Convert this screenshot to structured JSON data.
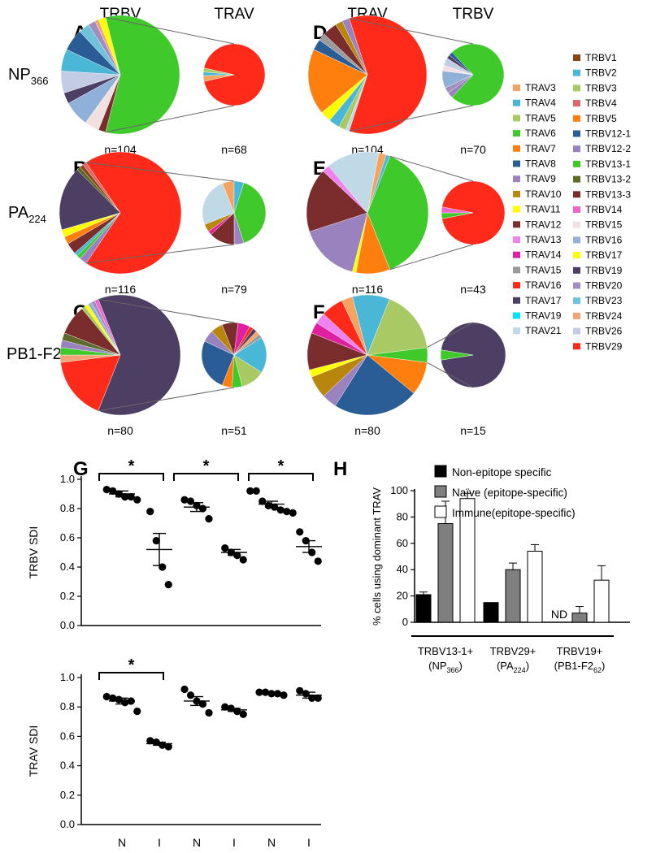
{
  "colors": {
    "TRBV1": "#8B4513",
    "TRBV2": "#4BB7D6",
    "TRBV3": "#A8C964",
    "TRBV4": "#E06666",
    "TRBV5": "#FF7F0E",
    "TRBV12-1": "#2A5D95",
    "TRBV12-2": "#9A82BE",
    "TRBV13-1": "#3FC92A",
    "TRBV13-2": "#5C6B2A",
    "TRBV13-3": "#7B2C2C",
    "TRBV14": "#EE66CC",
    "TRBV15": "#F2E0E0",
    "TRBV16": "#8FB0D8",
    "TRBV17": "#FFFF00",
    "TRBV19": "#4D3F64",
    "TRBV20": "#A08EC0",
    "TRBV23": "#6FC3D9",
    "TRBV24": "#F4A277",
    "TRBV26": "#C3CCE2",
    "TRBV29": "#FF2A1A",
    "TRAV3": "#F4A460",
    "TRAV4": "#4BB7D6",
    "TRAV5": "#A8C964",
    "TRAV6": "#3FC92A",
    "TRAV7": "#FF7F0E",
    "TRAV8": "#2A5D95",
    "TRAV9": "#9A82BE",
    "TRAV10": "#B8860B",
    "TRAV11": "#FFFF00",
    "TRAV12": "#7B2C2C",
    "TRAV13": "#EE82EE",
    "TRAV14": "#E020A0",
    "TRAV15": "#9A9A9A",
    "TRAV16": "#FF2A1A",
    "TRAV17": "#4D3F64",
    "TRAV19": "#00E5FF",
    "TRAV21": "#BFD9E6"
  },
  "header": {
    "left_trbv": "TRBV",
    "left_trav": "TRAV",
    "right_trav": "TRAV",
    "right_trbv": "TRBV"
  },
  "rows": [
    {
      "name": "NP",
      "sub": "366"
    },
    {
      "name": "PA",
      "sub": "224"
    },
    {
      "name": "PB1-F2",
      "sub": "62"
    }
  ],
  "legend": {
    "trav": [
      "TRAV3",
      "TRAV4",
      "TRAV5",
      "TRAV6",
      "TRAV7",
      "TRAV8",
      "TRAV9",
      "TRAV10",
      "TRAV11",
      "TRAV12",
      "TRAV13",
      "TRAV14",
      "TRAV15",
      "TRAV16",
      "TRAV17",
      "TRAV19",
      "TRAV21"
    ],
    "trbv": [
      "TRBV1",
      "TRBV2",
      "TRBV3",
      "TRBV4",
      "TRBV5",
      "TRBV12-1",
      "TRBV12-2",
      "TRBV13-1",
      "TRBV13-2",
      "TRBV13-3",
      "TRBV14",
      "TRBV15",
      "TRBV16",
      "TRBV17",
      "TRBV19",
      "TRBV20",
      "TRBV23",
      "TRBV24",
      "TRBV26",
      "TRBV29"
    ]
  },
  "chart_data": [
    {
      "panel": "A",
      "type": "pie",
      "epitope": "NP366",
      "gene": "TRBV",
      "n_label": "n=104",
      "highlight": "TRBV13-1",
      "slices": [
        {
          "label": "TRBV13-1",
          "value": 58
        },
        {
          "label": "TRBV13-3",
          "value": 2
        },
        {
          "label": "TRBV15",
          "value": 4
        },
        {
          "label": "TRBV16",
          "value": 7
        },
        {
          "label": "TRBV19",
          "value": 3
        },
        {
          "label": "TRBV26",
          "value": 6
        },
        {
          "label": "TRBV2",
          "value": 6
        },
        {
          "label": "TRBV12-1",
          "value": 6
        },
        {
          "label": "TRBV23",
          "value": 3
        },
        {
          "label": "TRBV20",
          "value": 2
        },
        {
          "label": "TRBV24",
          "value": 1
        },
        {
          "label": "TRBV17",
          "value": 2
        }
      ]
    },
    {
      "panel": "A",
      "type": "pie",
      "epitope": "NP366",
      "gene": "TRAV",
      "subset": "TRBV13-1+",
      "n_label": "n=68",
      "slices": [
        {
          "label": "TRAV16",
          "value": 93
        },
        {
          "label": "TRAV3",
          "value": 3
        },
        {
          "label": "TRAV4",
          "value": 2
        },
        {
          "label": "TRAV5",
          "value": 2
        }
      ]
    },
    {
      "panel": "B",
      "type": "pie",
      "epitope": "PA224",
      "gene": "TRBV",
      "n_label": "n=116",
      "highlight": "TRBV29",
      "slices": [
        {
          "label": "TRBV29",
          "value": 69
        },
        {
          "label": "TRBV12-2",
          "value": 2
        },
        {
          "label": "TRBV13-1",
          "value": 1
        },
        {
          "label": "TRBV2",
          "value": 1
        },
        {
          "label": "TRBV13-3",
          "value": 3
        },
        {
          "label": "TRBV5",
          "value": 2
        },
        {
          "label": "TRBV17",
          "value": 2
        },
        {
          "label": "TRBV19",
          "value": 17
        },
        {
          "label": "TRBV13-2",
          "value": 1
        },
        {
          "label": "TRBV1",
          "value": 1
        },
        {
          "label": "TRBV4",
          "value": 1
        }
      ]
    },
    {
      "panel": "B",
      "type": "pie",
      "epitope": "PA224",
      "gene": "TRAV",
      "subset": "TRBV29+",
      "n_label": "n=79",
      "slices": [
        {
          "label": "TRAV6",
          "value": 40
        },
        {
          "label": "TRAV9",
          "value": 5
        },
        {
          "label": "TRAV12",
          "value": 13
        },
        {
          "label": "TRAV14",
          "value": 2
        },
        {
          "label": "TRAV10",
          "value": 4
        },
        {
          "label": "TRAV21",
          "value": 25
        },
        {
          "label": "TRAV3",
          "value": 6
        },
        {
          "label": "TRAV4",
          "value": 5
        }
      ]
    },
    {
      "panel": "C",
      "type": "pie",
      "epitope": "PB1-F262",
      "gene": "TRBV",
      "n_label": "n=80",
      "highlight": "TRBV19",
      "slices": [
        {
          "label": "TRBV19",
          "value": 62
        },
        {
          "label": "TRBV29",
          "value": 17
        },
        {
          "label": "TRBV24",
          "value": 2
        },
        {
          "label": "TRBV13-1",
          "value": 2
        },
        {
          "label": "TRBV12-2",
          "value": 2
        },
        {
          "label": "TRBV13-2",
          "value": 2
        },
        {
          "label": "TRBV13-3",
          "value": 8
        },
        {
          "label": "TRBV3",
          "value": 1
        },
        {
          "label": "TRBV17",
          "value": 1
        },
        {
          "label": "TRBV16",
          "value": 1
        },
        {
          "label": "TRBV20",
          "value": 1
        },
        {
          "label": "TRBV14",
          "value": 1
        }
      ]
    },
    {
      "panel": "C",
      "type": "pie",
      "epitope": "PB1-F262",
      "gene": "TRAV",
      "subset": "TRBV19+",
      "n_label": "n=51",
      "slices": [
        {
          "label": "TRAV4",
          "value": 18
        },
        {
          "label": "TRAV5",
          "value": 12
        },
        {
          "label": "TRAV6",
          "value": 5
        },
        {
          "label": "TRAV7",
          "value": 5
        },
        {
          "label": "TRAV8",
          "value": 26
        },
        {
          "label": "TRAV9",
          "value": 6
        },
        {
          "label": "TRAV10",
          "value": 6
        },
        {
          "label": "TRAV12",
          "value": 8
        },
        {
          "label": "TRAV14",
          "value": 6
        },
        {
          "label": "TRAV16",
          "value": 2
        },
        {
          "label": "TRAV17",
          "value": 2
        },
        {
          "label": "TRAV3",
          "value": 2
        },
        {
          "label": "TRAV15",
          "value": 2
        }
      ]
    },
    {
      "panel": "D",
      "type": "pie",
      "epitope": "NP366",
      "gene": "TRAV",
      "n_label": "n=104",
      "highlight": "TRAV16",
      "slices": [
        {
          "label": "TRAV16",
          "value": 60
        },
        {
          "label": "TRAV21",
          "value": 1
        },
        {
          "label": "TRAV5",
          "value": 2
        },
        {
          "label": "TRAV4",
          "value": 3
        },
        {
          "label": "TRAV11",
          "value": 3
        },
        {
          "label": "TRAV7",
          "value": 18
        },
        {
          "label": "TRAV8",
          "value": 3
        },
        {
          "label": "TRAV15",
          "value": 2
        },
        {
          "label": "TRAV12",
          "value": 4
        },
        {
          "label": "TRAV10",
          "value": 2
        },
        {
          "label": "TRAV9",
          "value": 2
        }
      ]
    },
    {
      "panel": "D",
      "type": "pie",
      "epitope": "NP366",
      "gene": "TRBV",
      "subset": "TRAV16+",
      "n_label": "n=70",
      "slices": [
        {
          "label": "TRBV13-1",
          "value": 74
        },
        {
          "label": "TRBV12-2",
          "value": 3
        },
        {
          "label": "TRBV20",
          "value": 3
        },
        {
          "label": "TRBV16",
          "value": 9
        },
        {
          "label": "TRBV15",
          "value": 3
        },
        {
          "label": "TRBV26",
          "value": 4
        },
        {
          "label": "TRBV19",
          "value": 2
        },
        {
          "label": "TRBV12-1",
          "value": 2
        }
      ]
    },
    {
      "panel": "E",
      "type": "pie",
      "epitope": "PA224",
      "gene": "TRAV",
      "n_label": "n=116",
      "highlight": "TRAV6",
      "slices": [
        {
          "label": "TRAV6",
          "value": 38
        },
        {
          "label": "TRAV7",
          "value": 9
        },
        {
          "label": "TRAV11",
          "value": 1
        },
        {
          "label": "TRAV9",
          "value": 16
        },
        {
          "label": "TRAV12",
          "value": 17
        },
        {
          "label": "TRAV13",
          "value": 2
        },
        {
          "label": "TRAV21",
          "value": 14
        },
        {
          "label": "TRAV3",
          "value": 2
        },
        {
          "label": "TRAV4",
          "value": 1
        }
      ]
    },
    {
      "panel": "E",
      "type": "pie",
      "epitope": "PA224",
      "gene": "TRBV",
      "subset": "TRAV6+",
      "n_label": "n=43",
      "slices": [
        {
          "label": "TRBV29",
          "value": 94
        },
        {
          "label": "TRBV13-1",
          "value": 3
        },
        {
          "label": "TRBV14",
          "value": 3
        }
      ]
    },
    {
      "panel": "F",
      "type": "pie",
      "epitope": "PB1-F262",
      "gene": "TRAV",
      "n_label": "n=80",
      "highlight": "TRAV8",
      "slices": [
        {
          "label": "TRAV6",
          "value": 4
        },
        {
          "label": "TRAV7",
          "value": 9
        },
        {
          "label": "TRAV8",
          "value": 23
        },
        {
          "label": "TRAV9",
          "value": 4
        },
        {
          "label": "TRAV10",
          "value": 6
        },
        {
          "label": "TRAV11",
          "value": 2
        },
        {
          "label": "TRAV12",
          "value": 10
        },
        {
          "label": "TRAV14",
          "value": 3
        },
        {
          "label": "TRAV13",
          "value": 3
        },
        {
          "label": "TRAV16",
          "value": 6
        },
        {
          "label": "TRAV3",
          "value": 3
        },
        {
          "label": "TRAV4",
          "value": 10
        },
        {
          "label": "TRAV5",
          "value": 17
        }
      ]
    },
    {
      "panel": "F",
      "type": "pie",
      "epitope": "PB1-F262",
      "gene": "TRBV",
      "subset": "TRAV8+",
      "n_label": "n=15",
      "slices": [
        {
          "label": "TRBV19",
          "value": 95
        },
        {
          "label": "TRBV13-1",
          "value": 5
        }
      ]
    },
    {
      "panel": "G",
      "type": "scatter",
      "ylabel": "TRBV SDI",
      "ylim": [
        0,
        1.0
      ],
      "yticks": [
        "0.0",
        "0.2",
        "0.4",
        "0.6",
        "0.8",
        "1.0"
      ],
      "groups": [
        {
          "epitope": "NP366",
          "label": "N",
          "points": [
            0.93,
            0.92,
            0.9,
            0.88,
            0.88,
            0.86
          ],
          "mean": 0.9,
          "sem": 0.02
        },
        {
          "epitope": "NP366",
          "label": "I",
          "points": [
            0.78,
            0.58,
            0.4,
            0.28
          ],
          "mean": 0.52,
          "sem": 0.11
        },
        {
          "epitope": "PA224",
          "label": "N",
          "points": [
            0.86,
            0.85,
            0.82,
            0.8,
            0.73
          ],
          "mean": 0.81,
          "sem": 0.03
        },
        {
          "epitope": "PA224",
          "label": "I",
          "points": [
            0.53,
            0.5,
            0.48,
            0.45
          ],
          "mean": 0.5,
          "sem": 0.02
        },
        {
          "epitope": "PB1-F262",
          "label": "N",
          "points": [
            0.92,
            0.92,
            0.85,
            0.82,
            0.81,
            0.79,
            0.78,
            0.77
          ],
          "mean": 0.83,
          "sem": 0.02
        },
        {
          "epitope": "PB1-F262",
          "label": "I",
          "points": [
            0.64,
            0.58,
            0.5,
            0.44
          ],
          "mean": 0.54,
          "sem": 0.04
        }
      ],
      "significance": [
        {
          "epitope": "NP366",
          "text": "*"
        },
        {
          "epitope": "PA224",
          "text": "*"
        },
        {
          "epitope": "PB1-F262",
          "text": "*"
        }
      ]
    },
    {
      "panel": "G",
      "type": "scatter",
      "ylabel": "TRAV SDI",
      "ylim": [
        0,
        1.0
      ],
      "yticks": [
        "0.0",
        "0.2",
        "0.4",
        "0.6",
        "0.8",
        "1.0"
      ],
      "xticklabels": [
        "N",
        "I",
        "N",
        "I",
        "N",
        "I"
      ],
      "group_labels": [
        {
          "name": "NP",
          "sub": "366"
        },
        {
          "name": "PA",
          "sub": "224"
        },
        {
          "name": "PB1-F2",
          "sub": "62"
        }
      ],
      "groups": [
        {
          "epitope": "NP366",
          "label": "N",
          "points": [
            0.87,
            0.86,
            0.85,
            0.83,
            0.84,
            0.77
          ],
          "mean": 0.84,
          "sem": 0.02
        },
        {
          "epitope": "NP366",
          "label": "I",
          "points": [
            0.57,
            0.56,
            0.54,
            0.53
          ],
          "mean": 0.55,
          "sem": 0.01
        },
        {
          "epitope": "PA224",
          "label": "N",
          "points": [
            0.92,
            0.88,
            0.84,
            0.82,
            0.76
          ],
          "mean": 0.84,
          "sem": 0.03
        },
        {
          "epitope": "PA224",
          "label": "I",
          "points": [
            0.8,
            0.79,
            0.77,
            0.75
          ],
          "mean": 0.78,
          "sem": 0.01
        },
        {
          "epitope": "PB1-F262",
          "label": "N",
          "points": [
            0.9,
            0.9,
            0.89,
            0.89,
            0.88
          ],
          "mean": 0.89,
          "sem": 0.005
        },
        {
          "epitope": "PB1-F262",
          "label": "I",
          "points": [
            0.91,
            0.89,
            0.86,
            0.86
          ],
          "mean": 0.88,
          "sem": 0.02
        }
      ],
      "significance": [
        {
          "epitope": "NP366",
          "text": "*"
        }
      ]
    },
    {
      "panel": "H",
      "type": "bar",
      "ylabel": "% cells using dominant TRAV",
      "ylim": [
        0,
        100
      ],
      "yticks": [
        "0",
        "20",
        "40",
        "60",
        "80",
        "100"
      ],
      "categories": [
        {
          "line1": "TRBV13-1+",
          "name": "NP",
          "sub": "366"
        },
        {
          "line1": "TRBV29+",
          "name": "PA",
          "sub": "224"
        },
        {
          "line1": "TRBV19+",
          "name": "PB1-F2",
          "sub": "62"
        }
      ],
      "series": [
        {
          "name": "Non-epitope specific",
          "color": "#000000",
          "values": [
            21,
            15,
            null
          ],
          "errors": [
            2,
            0,
            0
          ]
        },
        {
          "name": "Naïve (epitope-specific)",
          "color": "#7F7F7F",
          "values": [
            75,
            40,
            7
          ],
          "errors": [
            17,
            5,
            5
          ]
        },
        {
          "name": "Immune(epitope-specific)",
          "color": "#FFFFFF",
          "values": [
            94,
            54,
            32
          ],
          "errors": [
            4,
            5,
            11
          ]
        }
      ],
      "annotations": [
        {
          "category": 2,
          "series": 0,
          "text": "ND"
        }
      ]
    }
  ],
  "panel_letters": [
    "A",
    "B",
    "C",
    "D",
    "E",
    "F",
    "G",
    "H"
  ]
}
